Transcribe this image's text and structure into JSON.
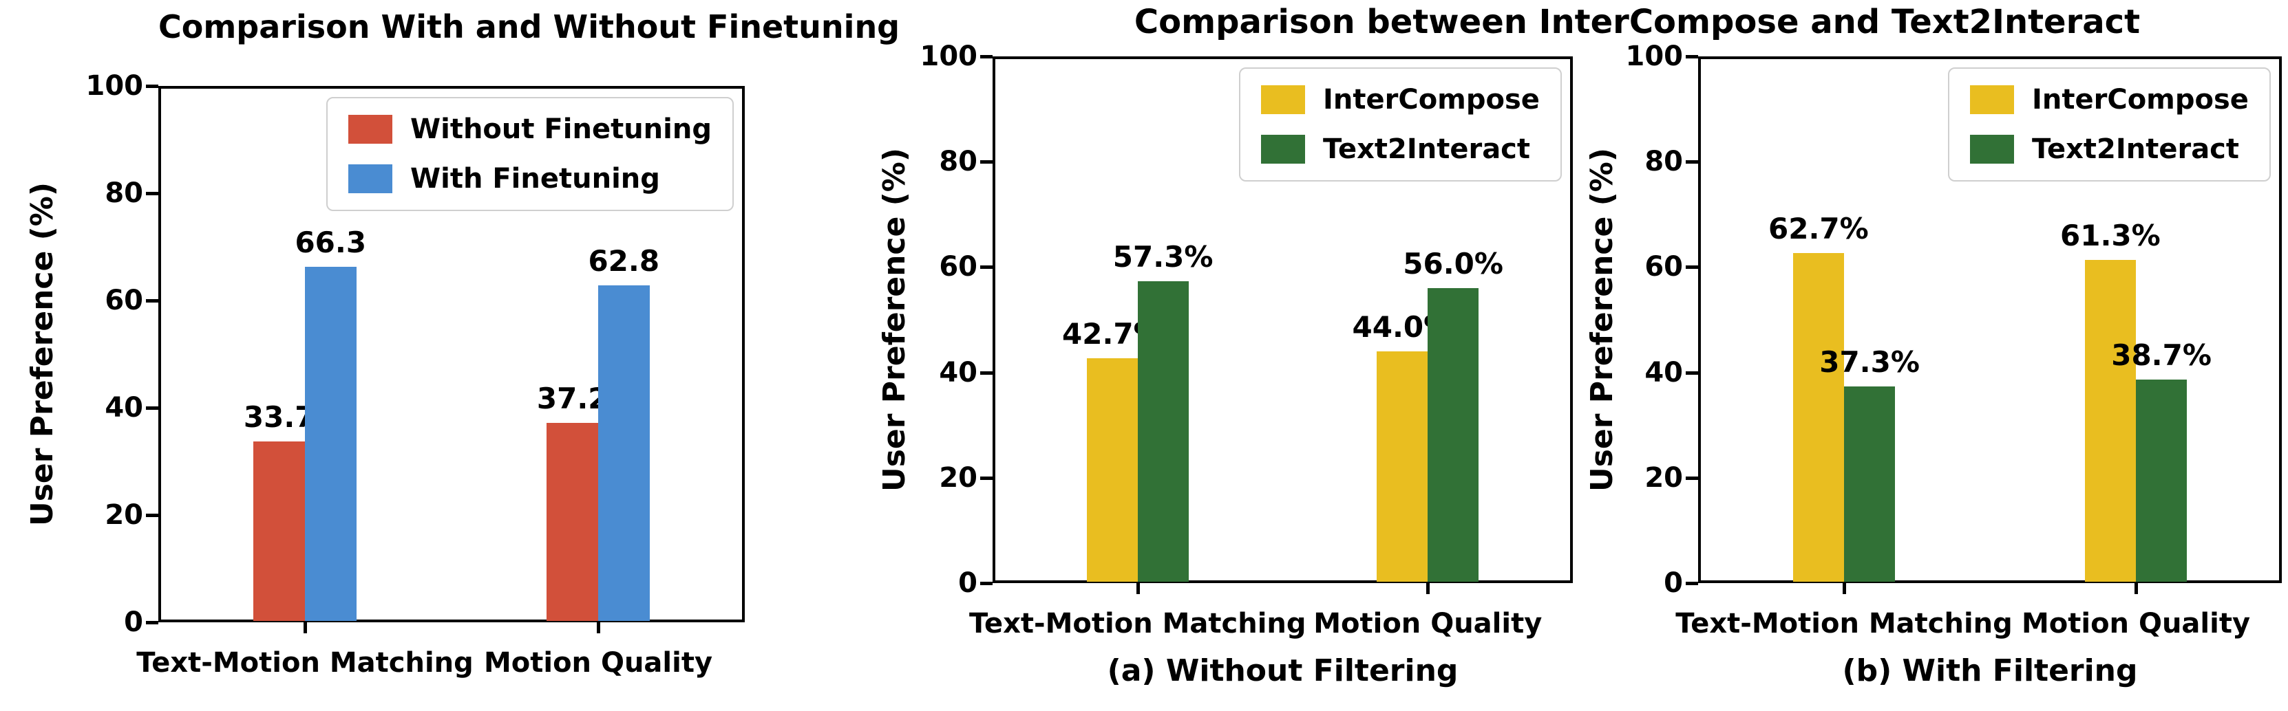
{
  "group_title": "Comparison between InterCompose and Text2Interact",
  "chart_data": [
    {
      "id": "finetuning-comparison",
      "type": "bar",
      "title": "Comparison With and Without Finetuning",
      "xlabel": "",
      "ylabel": "User Preference (%)",
      "ylim": [
        0,
        100
      ],
      "yticks": [
        0,
        20,
        40,
        60,
        80,
        100
      ],
      "grid": false,
      "legend_position": "upper right",
      "bar_width": 0.35,
      "categories": [
        "Text-Motion Matching",
        "Motion Quality"
      ],
      "series": [
        {
          "name": "Without Finetuning",
          "color": "#d2503a",
          "values": [
            33.7,
            37.2
          ],
          "value_labels": [
            "33.7",
            "37.2"
          ]
        },
        {
          "name": "With Finetuning",
          "color": "#4a8cd2",
          "values": [
            66.3,
            62.8
          ],
          "value_labels": [
            "66.3",
            "62.8"
          ]
        }
      ]
    },
    {
      "id": "intercompose-vs-text2interact-without-filtering",
      "type": "bar",
      "title": "(a) Without Filtering",
      "xlabel": "",
      "ylabel": "User Preference (%)",
      "ylim": [
        0,
        100
      ],
      "yticks": [
        0,
        20,
        40,
        60,
        80,
        100
      ],
      "grid": false,
      "legend_position": "upper right",
      "bar_width": 0.35,
      "categories": [
        "Text-Motion Matching",
        "Motion Quality"
      ],
      "series": [
        {
          "name": "InterCompose",
          "color": "#e9be20",
          "values": [
            42.7,
            44.0
          ],
          "value_labels": [
            "42.7%",
            "44.0%"
          ]
        },
        {
          "name": "Text2Interact",
          "color": "#317136",
          "values": [
            57.3,
            56.0
          ],
          "value_labels": [
            "57.3%",
            "56.0%"
          ]
        }
      ]
    },
    {
      "id": "intercompose-vs-text2interact-with-filtering",
      "type": "bar",
      "title": "(b) With Filtering",
      "xlabel": "",
      "ylabel": "User Preference (%)",
      "ylim": [
        0,
        100
      ],
      "yticks": [
        0,
        20,
        40,
        60,
        80,
        100
      ],
      "grid": false,
      "legend_position": "upper right",
      "bar_width": 0.35,
      "categories": [
        "Text-Motion Matching",
        "Motion Quality"
      ],
      "series": [
        {
          "name": "InterCompose",
          "color": "#e9be20",
          "values": [
            62.7,
            61.3
          ],
          "value_labels": [
            "62.7%",
            "61.3%"
          ]
        },
        {
          "name": "Text2Interact",
          "color": "#317136",
          "values": [
            37.3,
            38.7
          ],
          "value_labels": [
            "37.3%",
            "38.7%"
          ]
        }
      ]
    }
  ]
}
